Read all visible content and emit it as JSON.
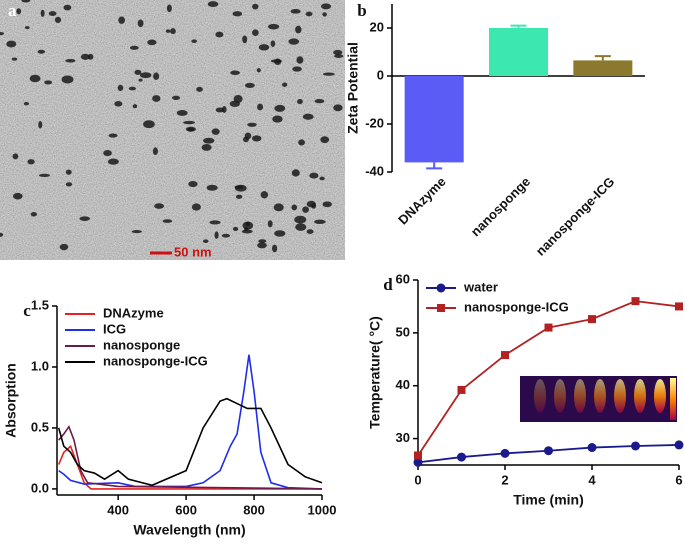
{
  "image_panel": {
    "label": "a",
    "scale_bar": "50 nm"
  },
  "chart_data": [
    {
      "type": "bar",
      "label": "b",
      "ylabel": "Zeta Potential",
      "categories": [
        "DNAzyme",
        "nanosponge",
        "nanosponge-ICG"
      ],
      "values": [
        -36,
        20,
        6.5
      ],
      "errors": [
        2.5,
        1,
        1.8
      ],
      "colors": [
        "#5b5bf5",
        "#3de8b0",
        "#8b7a2e"
      ],
      "ylim": [
        -40,
        30
      ],
      "yticks": [
        -40,
        -20,
        0,
        20
      ]
    },
    {
      "type": "line",
      "label": "c",
      "xlabel": "Wavelength (nm)",
      "ylabel": "Absorption",
      "xlim": [
        220,
        1000
      ],
      "xticks": [
        400,
        600,
        800,
        1000
      ],
      "ylim": [
        -0.05,
        1.5
      ],
      "yticks": [
        {
          "value": 0,
          "label": "0.0"
        },
        0.5,
        {
          "value": 1,
          "label": "1.0"
        },
        1.5
      ],
      "series": [
        {
          "name": "DNAzyme",
          "color": "#e8231f",
          "x": [
            225,
            240,
            260,
            280,
            300,
            320,
            400,
            600,
            800,
            1000
          ],
          "values": [
            0.2,
            0.3,
            0.35,
            0.2,
            0.05,
            0.0,
            0.0,
            0.0,
            0.0,
            0.0
          ]
        },
        {
          "name": "ICG",
          "color": "#1f2ee8",
          "x": [
            225,
            240,
            260,
            300,
            400,
            450,
            600,
            650,
            700,
            730,
            750,
            770,
            785,
            800,
            820,
            850,
            900,
            1000
          ],
          "values": [
            0.15,
            0.12,
            0.07,
            0.04,
            0.05,
            0.02,
            0.02,
            0.05,
            0.15,
            0.35,
            0.45,
            0.8,
            1.1,
            0.8,
            0.3,
            0.05,
            0.01,
            0.0
          ]
        },
        {
          "name": "nanosponge",
          "color": "#6b1a4a",
          "x": [
            225,
            240,
            255,
            270,
            290,
            310,
            400,
            1000
          ],
          "values": [
            0.4,
            0.45,
            0.51,
            0.4,
            0.15,
            0.05,
            0.02,
            0.0
          ]
        },
        {
          "name": "nanosponge-ICG",
          "color": "#000000",
          "x": [
            225,
            240,
            260,
            280,
            300,
            330,
            360,
            400,
            430,
            500,
            600,
            650,
            700,
            720,
            750,
            780,
            820,
            850,
            900,
            950,
            1000
          ],
          "values": [
            0.5,
            0.35,
            0.3,
            0.2,
            0.15,
            0.13,
            0.08,
            0.15,
            0.08,
            0.03,
            0.15,
            0.5,
            0.72,
            0.74,
            0.7,
            0.66,
            0.66,
            0.5,
            0.2,
            0.1,
            0.05
          ]
        }
      ]
    },
    {
      "type": "line",
      "label": "d",
      "xlabel": "Time (min)",
      "ylabel": "Temperature( °C)",
      "x": [
        0,
        1,
        2,
        3,
        4,
        5,
        6
      ],
      "xlim": [
        0,
        6
      ],
      "xticks": [
        0,
        2,
        4,
        6
      ],
      "ylim": [
        25,
        60
      ],
      "yticks": [
        30,
        40,
        50,
        60
      ],
      "series": [
        {
          "name": "water",
          "color": "#1a1a8c",
          "marker": "circle",
          "values": [
            25.5,
            26.5,
            27.2,
            27.7,
            28.3,
            28.6,
            28.8
          ]
        },
        {
          "name": "nanosponge-ICG",
          "color": "#b22222",
          "marker": "square",
          "values": [
            26.8,
            39.2,
            45.8,
            51.0,
            52.6,
            56.0,
            55.0
          ]
        }
      ]
    }
  ]
}
